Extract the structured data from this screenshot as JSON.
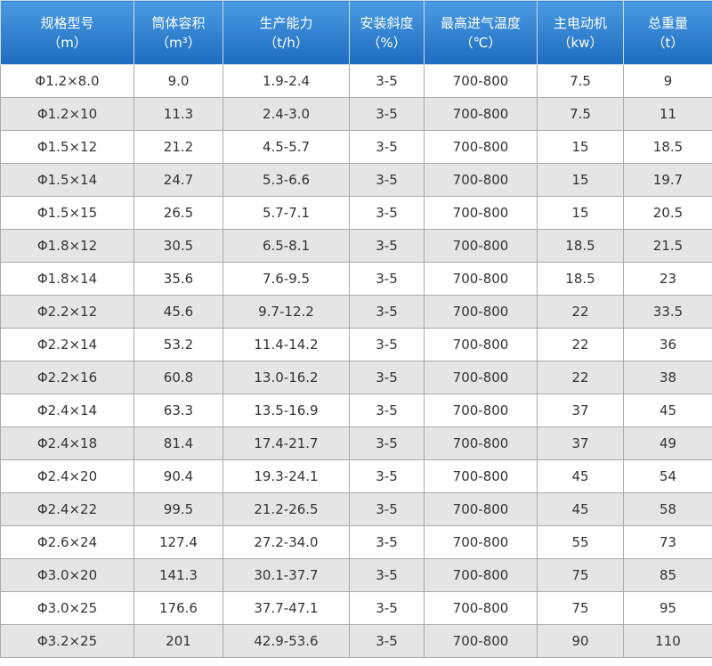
{
  "table": {
    "header": [
      {
        "title": "规格型号",
        "unit": "（m）"
      },
      {
        "title": "筒体容积",
        "unit": "（m³）"
      },
      {
        "title": "生产能力",
        "unit": "（t/h）"
      },
      {
        "title": "安装斜度",
        "unit": "（%）"
      },
      {
        "title": "最高进气温度",
        "unit": "（℃）"
      },
      {
        "title": "主电动机",
        "unit": "（kw）"
      },
      {
        "title": "总重量",
        "unit": "（t）"
      }
    ],
    "rows": [
      [
        "Φ1.2×8.0",
        "9.0",
        "1.9-2.4",
        "3-5",
        "700-800",
        "7.5",
        "9"
      ],
      [
        "Φ1.2×10",
        "11.3",
        "2.4-3.0",
        "3-5",
        "700-800",
        "7.5",
        "11"
      ],
      [
        "Φ1.5×12",
        "21.2",
        "4.5-5.7",
        "3-5",
        "700-800",
        "15",
        "18.5"
      ],
      [
        "Φ1.5×14",
        "24.7",
        "5.3-6.6",
        "3-5",
        "700-800",
        "15",
        "19.7"
      ],
      [
        "Φ1.5×15",
        "26.5",
        "5.7-7.1",
        "3-5",
        "700-800",
        "15",
        "20.5"
      ],
      [
        "Φ1.8×12",
        "30.5",
        "6.5-8.1",
        "3-5",
        "700-800",
        "18.5",
        "21.5"
      ],
      [
        "Φ1.8×14",
        "35.6",
        "7.6-9.5",
        "3-5",
        "700-800",
        "18.5",
        "23"
      ],
      [
        "Φ2.2×12",
        "45.6",
        "9.7-12.2",
        "3-5",
        "700-800",
        "22",
        "33.5"
      ],
      [
        "Φ2.2×14",
        "53.2",
        "11.4-14.2",
        "3-5",
        "700-800",
        "22",
        "36"
      ],
      [
        "Φ2.2×16",
        "60.8",
        "13.0-16.2",
        "3-5",
        "700-800",
        "22",
        "38"
      ],
      [
        "Φ2.4×14",
        "63.3",
        "13.5-16.9",
        "3-5",
        "700-800",
        "37",
        "45"
      ],
      [
        "Φ2.4×18",
        "81.4",
        "17.4-21.7",
        "3-5",
        "700-800",
        "37",
        "49"
      ],
      [
        "Φ2.4×20",
        "90.4",
        "19.3-24.1",
        "3-5",
        "700-800",
        "45",
        "54"
      ],
      [
        "Φ2.4×22",
        "99.5",
        "21.2-26.5",
        "3-5",
        "700-800",
        "45",
        "58"
      ],
      [
        "Φ2.6×24",
        "127.4",
        "27.2-34.0",
        "3-5",
        "700-800",
        "55",
        "73"
      ],
      [
        "Φ3.0×20",
        "141.3",
        "30.1-37.7",
        "3-5",
        "700-800",
        "75",
        "85"
      ],
      [
        "Φ3.0×25",
        "176.6",
        "37.7-47.1",
        "3-5",
        "700-800",
        "75",
        "95"
      ],
      [
        "Φ3.2×25",
        "201",
        "42.9-53.6",
        "3-5",
        "700-800",
        "90",
        "110"
      ]
    ]
  }
}
